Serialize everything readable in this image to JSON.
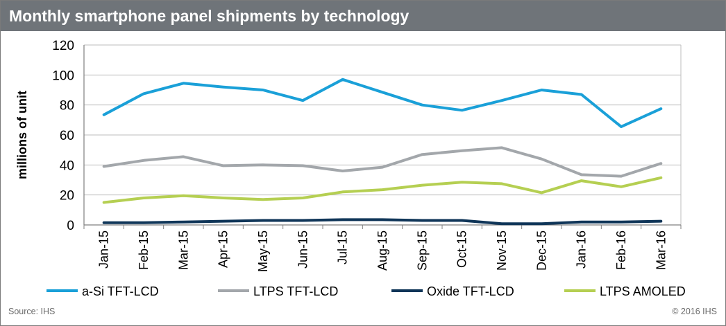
{
  "header": {
    "title": "Monthly smartphone panel shipments by technology"
  },
  "footer": {
    "source": "Source: IHS",
    "copyright": "© 2016 IHS"
  },
  "chart_data": {
    "type": "line",
    "title": "Monthly smartphone panel shipments by technology",
    "xlabel": "",
    "ylabel": "millions of unit",
    "ylim": [
      0,
      120
    ],
    "yticks": [
      0,
      20,
      40,
      60,
      80,
      100,
      120
    ],
    "grid": true,
    "legend_position": "bottom",
    "categories": [
      "Jan-15",
      "Feb-15",
      "Mar-15",
      "Apr-15",
      "May-15",
      "Jun-15",
      "Jul-15",
      "Aug-15",
      "Sep-15",
      "Oct-15",
      "Nov-15",
      "Dec-15",
      "Jan-16",
      "Feb-16",
      "Mar-16"
    ],
    "series": [
      {
        "name": "a-Si TFT-LCD",
        "color": "#1aa0d8",
        "values": [
          73.5,
          87.5,
          94.5,
          92,
          90,
          83,
          97,
          88.5,
          80,
          76.5,
          83,
          90,
          87,
          65.5,
          77.5
        ]
      },
      {
        "name": "LTPS TFT-LCD",
        "color": "#a3a7ab",
        "values": [
          39,
          43,
          45.5,
          39.5,
          40,
          39.5,
          36,
          38.5,
          47,
          49.5,
          51.5,
          44,
          33.5,
          32.5,
          41
        ]
      },
      {
        "name": "Oxide TFT-LCD",
        "color": "#0f3558",
        "values": [
          1.5,
          1.5,
          2,
          2.5,
          3,
          3,
          3.5,
          3.5,
          3,
          3,
          0.8,
          0.8,
          2,
          2,
          2.5
        ]
      },
      {
        "name": "LTPS AMOLED",
        "color": "#b5cf52",
        "values": [
          15,
          18,
          19.5,
          18,
          17,
          18,
          22,
          23.5,
          26.5,
          28.5,
          27.5,
          21.5,
          29.5,
          25.5,
          31.5
        ]
      }
    ]
  }
}
